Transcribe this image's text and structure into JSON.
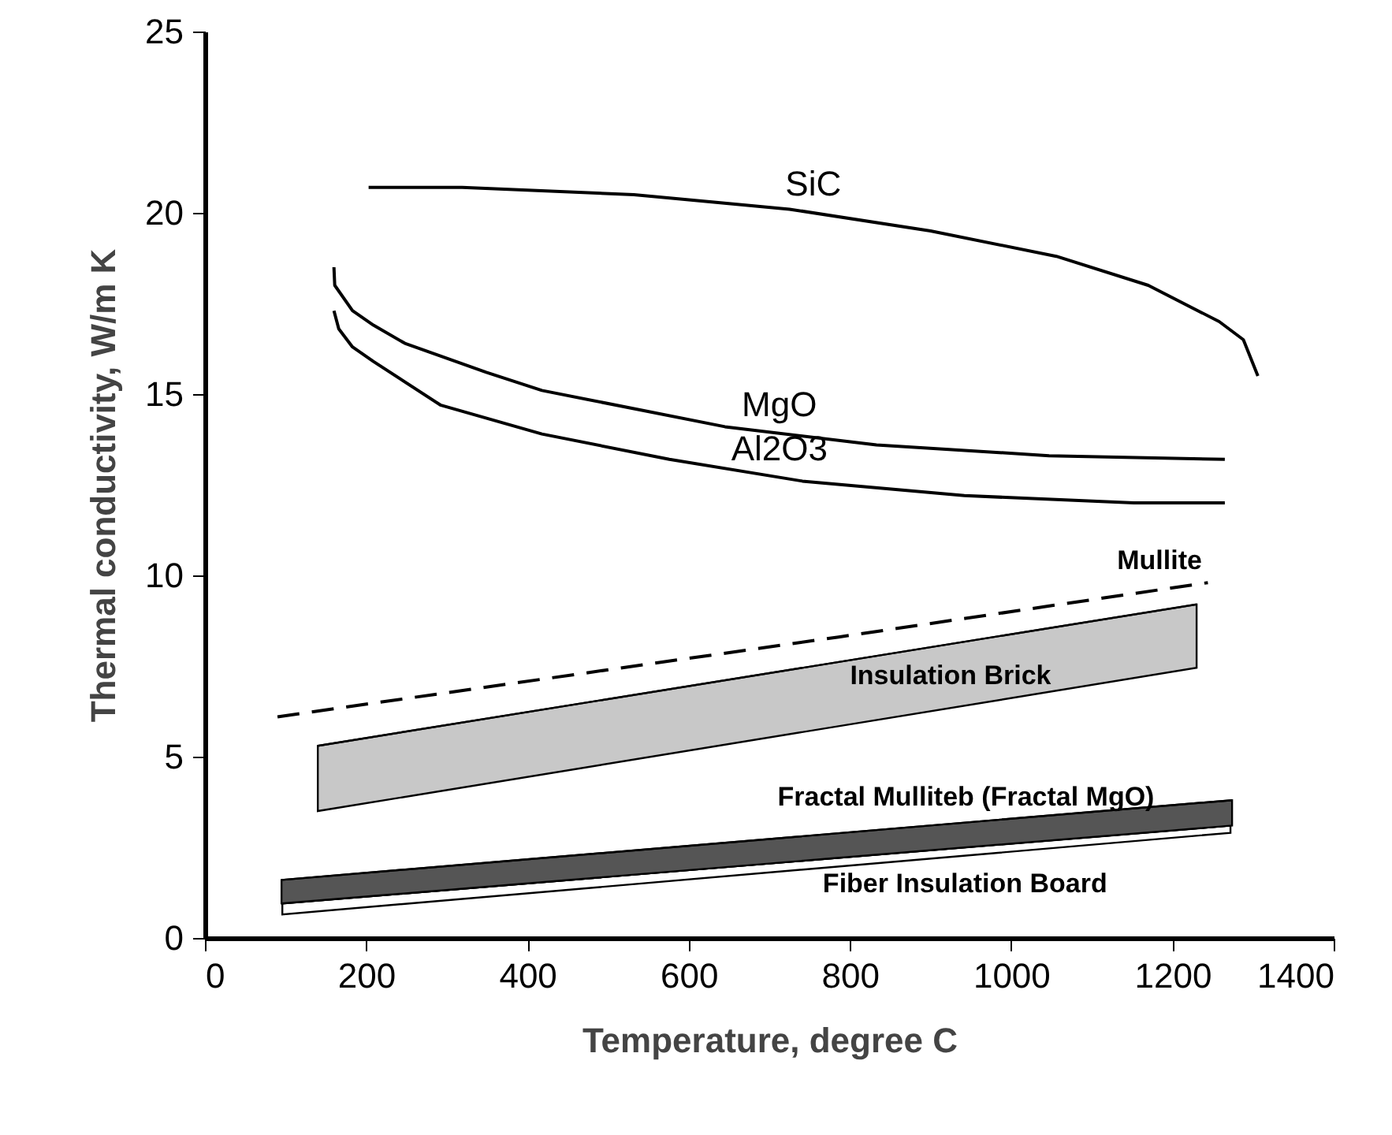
{
  "chart_data": {
    "type": "line",
    "xlabel": "Temperature, degree C",
    "ylabel": "Thermal conductivity, W/m K",
    "xlim": [
      0,
      1400
    ],
    "xticks": [
      0,
      200,
      400,
      600,
      800,
      1000,
      1200,
      1400
    ],
    "ylim": [
      0,
      25
    ],
    "yticks": [
      0,
      5,
      10,
      15,
      20,
      25
    ],
    "grid": false,
    "series": [
      {
        "name": "Insulation Brick",
        "color": "#000000",
        "x": [
          140,
          1230
        ],
        "values": [
          5.3,
          9.2
        ],
        "upper": [
          5.3,
          9.2
        ],
        "lower": [
          3.5,
          7.45
        ]
      },
      {
        "name": "Fiber Insulation Board",
        "color": "#000000",
        "x": [
          96,
          1272
        ],
        "values": [
          0.95,
          3.1
        ],
        "upper": [
          0.95,
          3.1
        ],
        "lower": [
          0.65,
          2.9
        ]
      },
      {
        "name": "Fractal Mulliteb (Fractal MgO)",
        "color": "#000000",
        "x": [
          95,
          1274
        ],
        "values": [
          1.6,
          3.8
        ],
        "upper": [
          1.6,
          3.8
        ],
        "lower": [
          0.95,
          3.1
        ]
      },
      {
        "name": "SiC",
        "color": "#000000",
        "x": [
          203,
          319,
          532,
          725,
          900,
          1056,
          1170,
          1258,
          1288,
          1306
        ],
        "values": [
          20.7,
          20.7,
          20.5,
          20.1,
          19.5,
          18.8,
          18.0,
          17.0,
          16.5,
          15.5
        ]
      },
      {
        "name": "MgO",
        "color": "#000000",
        "x": [
          160,
          161,
          183,
          209,
          248,
          349,
          418,
          645,
          833,
          1047,
          1265
        ],
        "values": [
          18.5,
          18.0,
          17.3,
          16.9,
          16.4,
          15.6,
          15.1,
          14.1,
          13.6,
          13.3,
          13.2
        ]
      },
      {
        "name": "Al2O3",
        "color": "#000000",
        "x": [
          160,
          166,
          183,
          209,
          292,
          418,
          576,
          741,
          942,
          1152,
          1265
        ],
        "values": [
          17.3,
          16.8,
          16.3,
          15.9,
          14.7,
          13.9,
          13.2,
          12.6,
          12.2,
          12.0,
          12.0
        ]
      },
      {
        "name": "Mullite",
        "color": "#000000",
        "line_style": "dashed",
        "x": [
          90,
          786,
          1244
        ],
        "values": [
          6.1,
          8.3,
          9.8
        ]
      }
    ]
  }
}
